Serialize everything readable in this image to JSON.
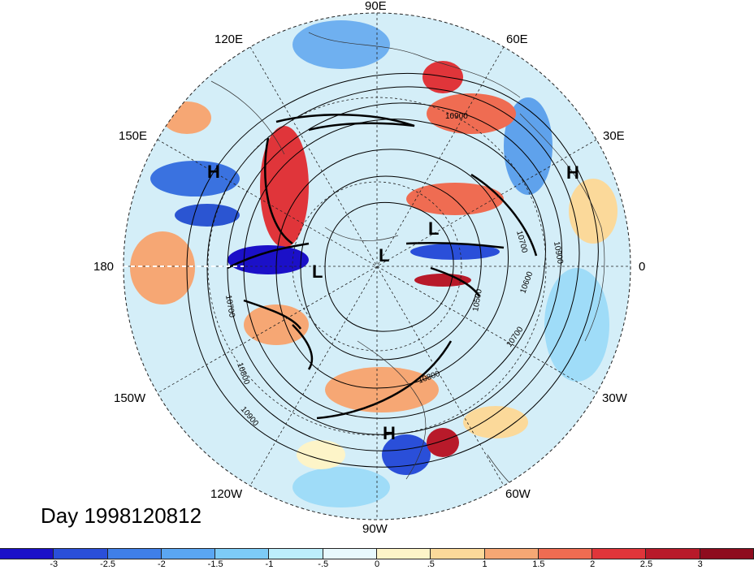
{
  "title": "Day 1998120812",
  "longitude_labels": {
    "e90": "90E",
    "e60": "60E",
    "e30": "30E",
    "zero": "0",
    "w30": "30W",
    "w60": "60W",
    "w90": "90W",
    "w120": "120W",
    "w150": "150W",
    "e180": "180",
    "e150": "150E",
    "e120": "120E"
  },
  "colorbar": {
    "labels": [
      "-3",
      "-2.5",
      "-2",
      "-1.5",
      "-1",
      "-.5",
      "0",
      ".5",
      "1",
      "1.5",
      "2",
      "2.5",
      "3"
    ],
    "colors": [
      "#1b10c8",
      "#2a4fd9",
      "#3f7fe8",
      "#5aa6f2",
      "#7dcbf7",
      "#bdeefc",
      "#e8f9fd",
      "#fdf4c8",
      "#fbd99a",
      "#f6a774",
      "#ef6c52",
      "#e0353a",
      "#b81a2a",
      "#8e0c1e"
    ]
  },
  "pressure_markers": {
    "h1": "H",
    "h2": "H",
    "h3": "H",
    "l1": "L",
    "l2": "L",
    "l3": "L"
  },
  "contour_labels": {
    "c1": "10900",
    "c2": "10700",
    "c3": "10900",
    "c4": "10600",
    "c5": "10500",
    "c6": "10700",
    "c7": "10800",
    "c8": "10700",
    "c9": "10800",
    "c10": "10900"
  }
}
